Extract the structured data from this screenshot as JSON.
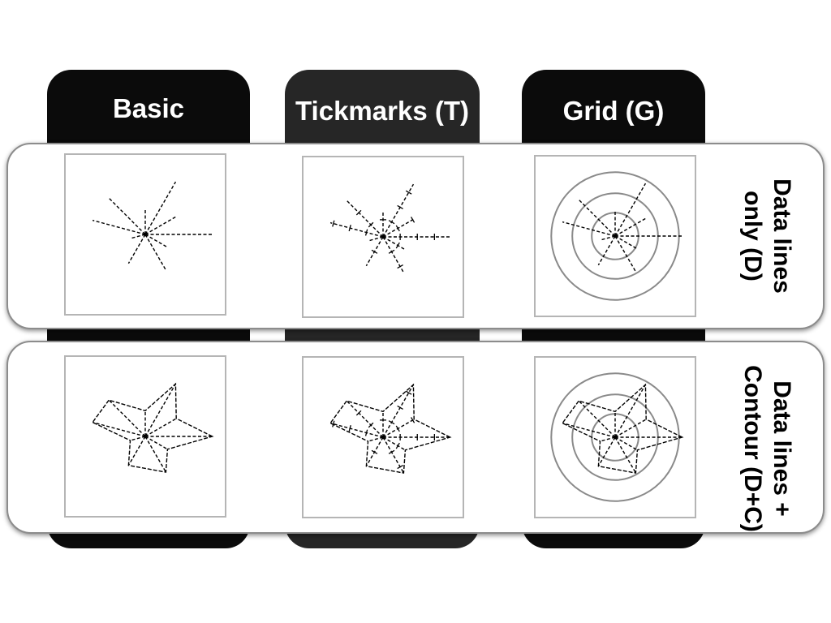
{
  "columns": [
    {
      "title": "Basic",
      "has_tickmarks": false,
      "has_grid": false
    },
    {
      "title": "Tickmarks (T)",
      "has_tickmarks": true,
      "has_grid": false
    },
    {
      "title": "Grid (G)",
      "has_tickmarks": false,
      "has_grid": true
    }
  ],
  "rows": [
    {
      "label_line1": "Data lines",
      "label_line2": "only (D)",
      "has_contour": false
    },
    {
      "label_line1": "Data lines +",
      "label_line2": "Contour (D+C)",
      "has_contour": true
    }
  ],
  "chart_data": {
    "type": "star-glyph",
    "axes_angles_deg": [
      0,
      30,
      60,
      90,
      135,
      165,
      195,
      240,
      300,
      330
    ],
    "values": [
      0.86,
      0.46,
      0.78,
      0.33,
      0.66,
      0.7,
      0.2,
      0.43,
      0.53,
      0.33
    ],
    "grid_circle_radii": [
      0.3,
      0.55,
      0.82
    ]
  },
  "colors": {
    "tab_dark": "#0b0b0b",
    "tab_mid": "#262626",
    "grid_line": "#8a8a8a",
    "data_line": "#000000"
  }
}
